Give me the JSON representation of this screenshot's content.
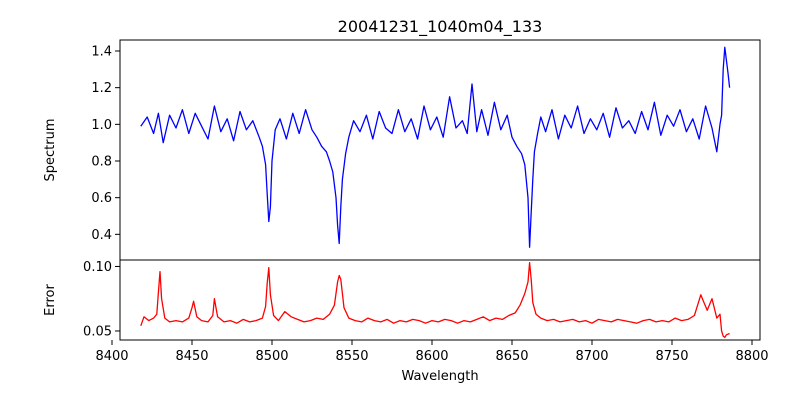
{
  "chart_data": [
    {
      "type": "line",
      "title": "20041231_1040m04_133",
      "xlabel": "",
      "ylabel": "Spectrum",
      "xlim": [
        8405,
        8805
      ],
      "ylim": [
        0.26,
        1.46
      ],
      "yticks": [
        0.4,
        0.6,
        0.8,
        1.0,
        1.2,
        1.4
      ],
      "ytick_labels": [
        "0.4",
        "0.6",
        "0.8",
        "1.0",
        "1.2",
        "1.4"
      ],
      "grid": false,
      "color": "#0000ff",
      "series": [
        {
          "x": [
            8418,
            8422,
            8426,
            8429,
            8432,
            8436,
            8440,
            8444,
            8448,
            8452,
            8456,
            8460,
            8464,
            8468,
            8472,
            8476,
            8480,
            8484,
            8488,
            8492,
            8494,
            8496,
            8497,
            8498,
            8499,
            8500,
            8502,
            8505,
            8509,
            8513,
            8517,
            8521,
            8525,
            8528,
            8531,
            8534,
            8536,
            8538,
            8540,
            8541,
            8542,
            8543,
            8544,
            8546,
            8548,
            8551,
            8555,
            8559,
            8563,
            8567,
            8571,
            8575,
            8579,
            8583,
            8587,
            8591,
            8595,
            8599,
            8603,
            8607,
            8611,
            8615,
            8619,
            8622,
            8625,
            8628,
            8631,
            8635,
            8639,
            8643,
            8647,
            8650,
            8653,
            8656,
            8658,
            8660,
            8661,
            8662,
            8663,
            8664,
            8666,
            8668,
            8671,
            8675,
            8679,
            8683,
            8687,
            8691,
            8695,
            8699,
            8703,
            8707,
            8711,
            8715,
            8719,
            8723,
            8727,
            8731,
            8735,
            8739,
            8743,
            8747,
            8751,
            8755,
            8759,
            8763,
            8767,
            8771,
            8775,
            8778,
            8780,
            8781,
            8782,
            8783,
            8784,
            8785,
            8786
          ],
          "y": [
            0.99,
            1.04,
            0.95,
            1.06,
            0.9,
            1.05,
            0.98,
            1.08,
            0.95,
            1.06,
            0.99,
            0.92,
            1.1,
            0.96,
            1.03,
            0.91,
            1.07,
            0.97,
            1.02,
            0.93,
            0.88,
            0.78,
            0.62,
            0.47,
            0.55,
            0.8,
            0.97,
            1.03,
            0.92,
            1.06,
            0.95,
            1.08,
            0.97,
            0.93,
            0.88,
            0.85,
            0.8,
            0.74,
            0.6,
            0.45,
            0.35,
            0.55,
            0.7,
            0.84,
            0.93,
            1.02,
            0.96,
            1.05,
            0.92,
            1.07,
            0.98,
            0.95,
            1.08,
            0.96,
            1.03,
            0.92,
            1.1,
            0.97,
            1.04,
            0.93,
            1.15,
            0.98,
            1.02,
            0.95,
            1.22,
            0.96,
            1.08,
            0.94,
            1.12,
            0.97,
            1.05,
            0.93,
            0.88,
            0.84,
            0.78,
            0.6,
            0.33,
            0.52,
            0.7,
            0.85,
            0.95,
            1.04,
            0.96,
            1.08,
            0.92,
            1.05,
            0.98,
            1.1,
            0.95,
            1.03,
            0.97,
            1.06,
            0.93,
            1.09,
            0.98,
            1.02,
            0.95,
            1.07,
            0.97,
            1.12,
            0.94,
            1.05,
            0.99,
            1.08,
            0.96,
            1.03,
            0.92,
            1.1,
            0.98,
            0.85,
            1.0,
            1.05,
            1.3,
            1.42,
            1.35,
            1.28,
            1.2
          ]
        }
      ]
    },
    {
      "type": "line",
      "title": "",
      "xlabel": "Wavelength",
      "ylabel": "Error",
      "xlim": [
        8405,
        8805
      ],
      "ylim": [
        0.043,
        0.105
      ],
      "yticks": [
        0.05,
        0.1
      ],
      "ytick_labels": [
        "0.05",
        "0.10"
      ],
      "xticks": [
        8400,
        8450,
        8500,
        8550,
        8600,
        8650,
        8700,
        8750,
        8800
      ],
      "xtick_labels": [
        "8400",
        "8450",
        "8500",
        "8550",
        "8600",
        "8650",
        "8700",
        "8750",
        "8800"
      ],
      "grid": false,
      "color": "#ff0000",
      "series": [
        {
          "x": [
            8418,
            8420,
            8423,
            8426,
            8428,
            8429,
            8430,
            8431,
            8433,
            8436,
            8440,
            8444,
            8448,
            8450,
            8451,
            8453,
            8456,
            8460,
            8463,
            8464,
            8466,
            8470,
            8474,
            8478,
            8482,
            8486,
            8490,
            8494,
            8496,
            8497,
            8498,
            8499,
            8501,
            8504,
            8508,
            8512,
            8516,
            8520,
            8524,
            8528,
            8532,
            8536,
            8539,
            8541,
            8542,
            8543,
            8545,
            8548,
            8552,
            8556,
            8560,
            8564,
            8568,
            8572,
            8576,
            8580,
            8584,
            8588,
            8592,
            8596,
            8600,
            8604,
            8608,
            8612,
            8616,
            8620,
            8624,
            8628,
            8632,
            8636,
            8640,
            8644,
            8648,
            8652,
            8655,
            8658,
            8660,
            8661,
            8662,
            8663,
            8665,
            8668,
            8672,
            8676,
            8680,
            8684,
            8688,
            8692,
            8696,
            8700,
            8704,
            8708,
            8712,
            8716,
            8720,
            8724,
            8728,
            8732,
            8736,
            8740,
            8744,
            8748,
            8752,
            8756,
            8760,
            8764,
            8766,
            8768,
            8770,
            8772,
            8775,
            8778,
            8780,
            8781,
            8782,
            8783,
            8784,
            8786
          ],
          "y": [
            0.054,
            0.061,
            0.058,
            0.06,
            0.063,
            0.08,
            0.096,
            0.075,
            0.06,
            0.057,
            0.058,
            0.057,
            0.06,
            0.068,
            0.073,
            0.061,
            0.058,
            0.057,
            0.062,
            0.075,
            0.061,
            0.057,
            0.058,
            0.056,
            0.059,
            0.057,
            0.058,
            0.06,
            0.069,
            0.087,
            0.099,
            0.078,
            0.062,
            0.058,
            0.065,
            0.061,
            0.059,
            0.057,
            0.058,
            0.06,
            0.059,
            0.063,
            0.07,
            0.088,
            0.093,
            0.09,
            0.068,
            0.06,
            0.058,
            0.057,
            0.06,
            0.058,
            0.057,
            0.059,
            0.056,
            0.058,
            0.057,
            0.059,
            0.058,
            0.056,
            0.058,
            0.057,
            0.059,
            0.058,
            0.056,
            0.058,
            0.057,
            0.059,
            0.061,
            0.058,
            0.06,
            0.059,
            0.062,
            0.064,
            0.07,
            0.079,
            0.088,
            0.103,
            0.09,
            0.072,
            0.063,
            0.06,
            0.058,
            0.059,
            0.057,
            0.058,
            0.059,
            0.057,
            0.058,
            0.056,
            0.059,
            0.058,
            0.057,
            0.059,
            0.058,
            0.057,
            0.056,
            0.058,
            0.059,
            0.057,
            0.058,
            0.057,
            0.06,
            0.058,
            0.059,
            0.062,
            0.07,
            0.078,
            0.072,
            0.066,
            0.075,
            0.06,
            0.063,
            0.05,
            0.046,
            0.045,
            0.047,
            0.048
          ]
        }
      ]
    }
  ]
}
